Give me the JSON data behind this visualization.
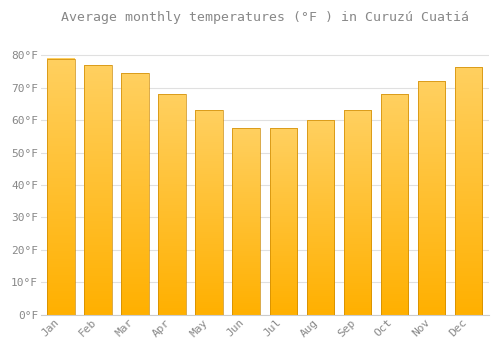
{
  "title": "Average monthly temperatures (°F ) in Curuzú Cuatiá",
  "months": [
    "Jan",
    "Feb",
    "Mar",
    "Apr",
    "May",
    "Jun",
    "Jul",
    "Aug",
    "Sep",
    "Oct",
    "Nov",
    "Dec"
  ],
  "values": [
    79,
    77,
    74.5,
    68,
    63,
    57.5,
    57.5,
    60,
    63,
    68,
    72,
    76.5
  ],
  "bar_color_top": "#FFC020",
  "bar_color_bottom": "#FFB000",
  "background_color": "#FFFFFF",
  "grid_color": "#E0E0E0",
  "text_color": "#888888",
  "ylim": [
    0,
    88
  ],
  "yticks": [
    0,
    10,
    20,
    30,
    40,
    50,
    60,
    70,
    80
  ],
  "title_fontsize": 9.5,
  "tick_fontsize": 8,
  "font_family": "monospace",
  "bar_width": 0.75
}
